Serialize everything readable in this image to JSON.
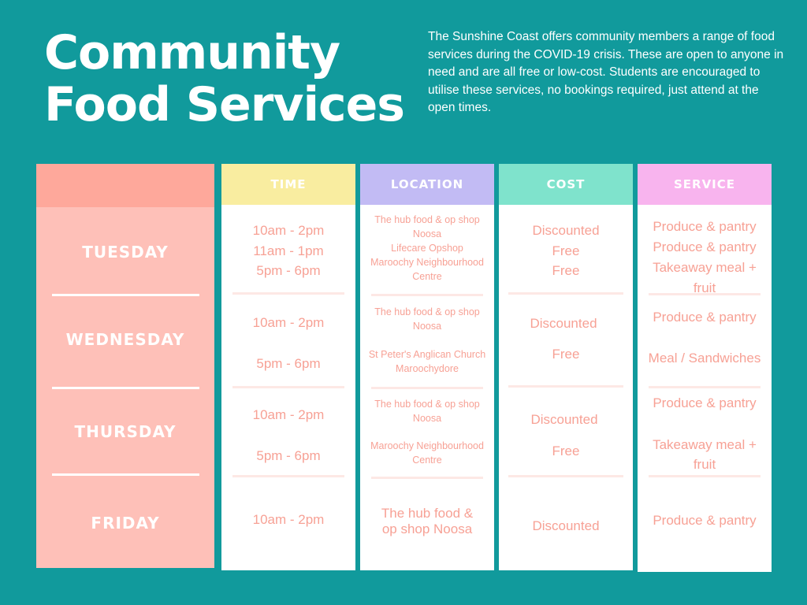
{
  "title": {
    "line1": "Community",
    "line2": "Food Services"
  },
  "intro": "The Sunshine Coast offers community members a range of food services during the COVID-19 crisis. These are open to anyone in need and are all free or low-cost. Students are encouraged to utilise these services, no bookings required, just attend at the open times.",
  "colors": {
    "background": "#119a9c",
    "time_header": "#f9eda0",
    "location_header": "#c2bbf4",
    "cost_header": "#7fe3cc",
    "service_header": "#f8b4ee",
    "day_column": "#fec0b8",
    "day_header": "#fea89b",
    "cell_text": "#f7a195"
  },
  "headers": {
    "time": "TIME",
    "location": "LOCATION",
    "cost": "COST",
    "service": "SERVICE"
  },
  "days": {
    "tuesday": "TUESDAY",
    "wednesday": "WEDNESDAY",
    "thursday": "THURSDAY",
    "friday": "FRIDAY"
  },
  "tuesday": {
    "time": [
      "10am - 2pm",
      "11am - 1pm",
      "5pm - 6pm"
    ],
    "location": [
      "The hub food & op shop",
      "Noosa",
      "Lifecare Opshop",
      "Maroochy Neighbourhood",
      "Centre"
    ],
    "cost": [
      "Discounted",
      "Free",
      "Free"
    ],
    "service": [
      "Produce & pantry",
      "Produce & pantry",
      "Takeaway meal +",
      "fruit"
    ]
  },
  "wednesday": {
    "time": [
      "10am - 2pm",
      "5pm - 6pm"
    ],
    "location": [
      "The hub food & op shop",
      "Noosa",
      "St Peter's Anglican Church",
      "Maroochydore"
    ],
    "cost": [
      "Discounted",
      "Free"
    ],
    "service": [
      "Produce & pantry",
      "Meal / Sandwiches"
    ]
  },
  "thursday": {
    "time": [
      "10am - 2pm",
      "5pm - 6pm"
    ],
    "location": [
      "The hub food & op shop",
      "Noosa",
      "Maroochy Neighbourhood",
      "Centre"
    ],
    "cost": [
      "Discounted",
      "Free"
    ],
    "service": [
      "Produce & pantry",
      "Takeaway meal +",
      "fruit"
    ]
  },
  "friday": {
    "time": [
      "10am - 2pm"
    ],
    "location": [
      "The hub food &",
      "op shop Noosa"
    ],
    "cost": [
      "Discounted"
    ],
    "service": [
      "Produce & pantry"
    ]
  }
}
